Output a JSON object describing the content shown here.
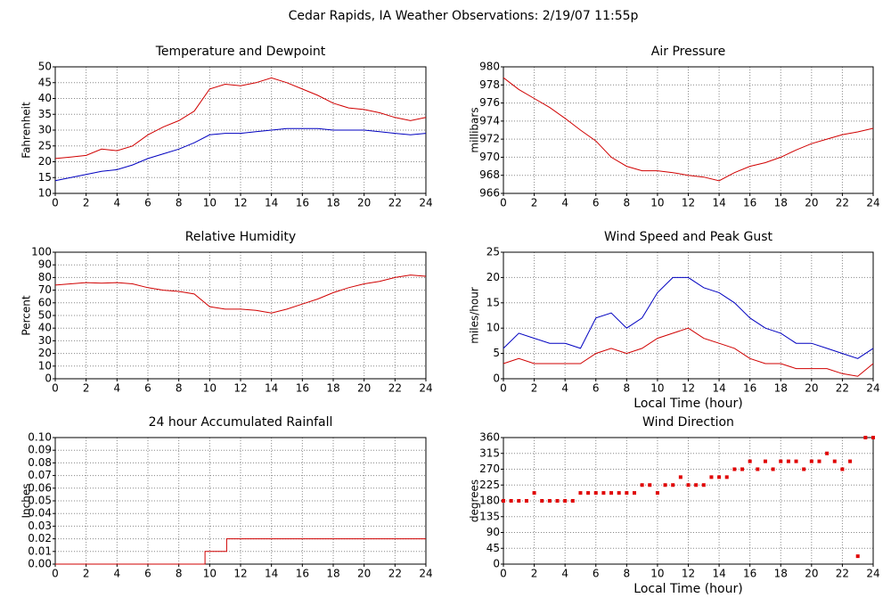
{
  "title": "Cedar Rapids, IA Weather Observations: 2/19/07 11:55p",
  "chart_data": [
    {
      "type": "line",
      "title": "Temperature and Dewpoint",
      "ylabel": "Fahrenheit",
      "x": [
        0,
        1,
        2,
        3,
        4,
        5,
        6,
        7,
        8,
        9,
        10,
        11,
        12,
        13,
        14,
        15,
        16,
        17,
        18,
        19,
        20,
        21,
        22,
        23,
        24
      ],
      "series": [
        {
          "color": "#d00000",
          "values": [
            21,
            21.5,
            22,
            24,
            23.5,
            25,
            28.5,
            31,
            33,
            36,
            43,
            44.5,
            44,
            45,
            46.5,
            45,
            43,
            41,
            38.5,
            37,
            36.5,
            35.5,
            34,
            33,
            34
          ]
        },
        {
          "color": "#0000c0",
          "values": [
            14,
            15,
            16,
            17,
            17.5,
            19,
            21,
            22.5,
            24,
            26,
            28.5,
            29,
            29,
            29.5,
            30,
            30.5,
            30.5,
            30.5,
            30,
            30,
            30,
            29.5,
            29,
            28.5,
            29
          ]
        }
      ],
      "xlim": [
        0,
        24
      ],
      "xticks": [
        0,
        2,
        4,
        6,
        8,
        10,
        12,
        14,
        16,
        18,
        20,
        22,
        24
      ],
      "ylim": [
        10,
        50
      ],
      "yticks": [
        10,
        15,
        20,
        25,
        30,
        35,
        40,
        45,
        50
      ],
      "grid": true
    },
    {
      "type": "line",
      "title": "Air Pressure",
      "ylabel": "millibars",
      "x": [
        0,
        1,
        2,
        3,
        4,
        5,
        6,
        7,
        8,
        9,
        10,
        11,
        12,
        13,
        14,
        15,
        16,
        17,
        18,
        19,
        20,
        21,
        22,
        23,
        24
      ],
      "series": [
        {
          "color": "#d00000",
          "values": [
            978.8,
            977.5,
            976.5,
            975.5,
            974.3,
            973,
            971.8,
            970,
            969,
            968.5,
            968.5,
            968.3,
            968,
            967.8,
            967.4,
            968.3,
            969,
            969.4,
            970,
            970.8,
            971.5,
            972,
            972.5,
            972.8,
            973.2
          ]
        }
      ],
      "xlim": [
        0,
        24
      ],
      "xticks": [
        0,
        2,
        4,
        6,
        8,
        10,
        12,
        14,
        16,
        18,
        20,
        22,
        24
      ],
      "ylim": [
        966,
        980
      ],
      "yticks": [
        966,
        968,
        970,
        972,
        974,
        976,
        978,
        980
      ],
      "grid": true
    },
    {
      "type": "line",
      "title": "Relative Humidity",
      "ylabel": "Percent",
      "x": [
        0,
        1,
        2,
        3,
        4,
        5,
        6,
        7,
        8,
        9,
        10,
        11,
        12,
        13,
        14,
        15,
        16,
        17,
        18,
        19,
        20,
        21,
        22,
        23,
        24
      ],
      "series": [
        {
          "color": "#d00000",
          "values": [
            74,
            75,
            76,
            75.5,
            76,
            75,
            72,
            70,
            69,
            67,
            57,
            55,
            55,
            54,
            52,
            55,
            59,
            63,
            68,
            72,
            75,
            77,
            80,
            82,
            81
          ]
        }
      ],
      "xlim": [
        0,
        24
      ],
      "xticks": [
        0,
        2,
        4,
        6,
        8,
        10,
        12,
        14,
        16,
        18,
        20,
        22,
        24
      ],
      "ylim": [
        0,
        100
      ],
      "yticks": [
        0,
        10,
        20,
        30,
        40,
        50,
        60,
        70,
        80,
        90,
        100
      ],
      "grid": true
    },
    {
      "type": "line",
      "title": "Wind Speed and Peak Gust",
      "ylabel": "miles/hour",
      "xlabel": "Local Time (hour)",
      "x": [
        0,
        1,
        2,
        3,
        4,
        5,
        6,
        7,
        8,
        9,
        10,
        11,
        12,
        13,
        14,
        15,
        16,
        17,
        18,
        19,
        20,
        21,
        22,
        23,
        24
      ],
      "series": [
        {
          "color": "#0000c0",
          "values": [
            6,
            9,
            8,
            7,
            7,
            6,
            12,
            13,
            10,
            12,
            17,
            20,
            20,
            18,
            17,
            15,
            12,
            10,
            9,
            7,
            7,
            6,
            5,
            4,
            6
          ]
        },
        {
          "color": "#d00000",
          "values": [
            3,
            4,
            3,
            3,
            3,
            3,
            5,
            6,
            5,
            6,
            8,
            9,
            10,
            8,
            7,
            6,
            4,
            3,
            3,
            2,
            2,
            2,
            1,
            0.5,
            3
          ]
        }
      ],
      "xlim": [
        0,
        24
      ],
      "xticks": [
        0,
        2,
        4,
        6,
        8,
        10,
        12,
        14,
        16,
        18,
        20,
        22,
        24
      ],
      "ylim": [
        0,
        25
      ],
      "yticks": [
        0,
        5,
        10,
        15,
        20,
        25
      ],
      "grid": true
    },
    {
      "type": "line",
      "title": "24 hour Accumulated Rainfall",
      "ylabel": "Inches",
      "x": [
        0,
        9.7,
        9.7,
        11.1,
        11.1,
        24
      ],
      "series": [
        {
          "color": "#d00000",
          "values": [
            0,
            0,
            0.01,
            0.01,
            0.02,
            0.02
          ]
        }
      ],
      "xlim": [
        0,
        24
      ],
      "xticks": [
        0,
        2,
        4,
        6,
        8,
        10,
        12,
        14,
        16,
        18,
        20,
        22,
        24
      ],
      "ylim": [
        0,
        0.1
      ],
      "yticks": [
        {
          "value": 0,
          "label": "0.00"
        },
        0.01,
        0.02,
        0.03,
        0.04,
        0.05,
        0.06,
        0.07,
        0.08,
        0.09,
        {
          "value": 0.1,
          "label": "0.10"
        }
      ],
      "grid": true
    },
    {
      "type": "scatter",
      "title": "Wind Direction",
      "ylabel": "degrees",
      "xlabel": "Local Time (hour)",
      "color": "#e00000",
      "x": [
        0,
        0.5,
        1,
        1.5,
        2,
        2.5,
        3,
        3.5,
        4,
        4.5,
        5,
        5.5,
        6,
        6.5,
        7,
        7.5,
        8,
        8.5,
        9,
        9.5,
        10,
        10.5,
        11,
        11.5,
        12,
        12.5,
        13,
        13.5,
        14,
        14.5,
        15,
        15.5,
        16,
        16.5,
        17,
        17.5,
        18,
        18.5,
        19,
        19.5,
        20,
        20.5,
        21,
        21.5,
        22,
        22.5,
        23,
        23.5,
        24
      ],
      "values": [
        180,
        180,
        180,
        180,
        202.5,
        180,
        180,
        180,
        180,
        180,
        202.5,
        202.5,
        202.5,
        202.5,
        202.5,
        202.5,
        202.5,
        202.5,
        225,
        225,
        202.5,
        225,
        225,
        247.5,
        225,
        225,
        225,
        247.5,
        247.5,
        247.5,
        270,
        270,
        292.5,
        270,
        292.5,
        270,
        292.5,
        292.5,
        292.5,
        270,
        292.5,
        292.5,
        315,
        292.5,
        270,
        292.5,
        22.5,
        360,
        360
      ],
      "xlim": [
        0,
        24
      ],
      "xticks": [
        0,
        2,
        4,
        6,
        8,
        10,
        12,
        14,
        16,
        18,
        20,
        22,
        24
      ],
      "ylim": [
        0,
        360
      ],
      "yticks": [
        0,
        45,
        90,
        135,
        180,
        225,
        270,
        315,
        360
      ],
      "grid": true
    }
  ]
}
